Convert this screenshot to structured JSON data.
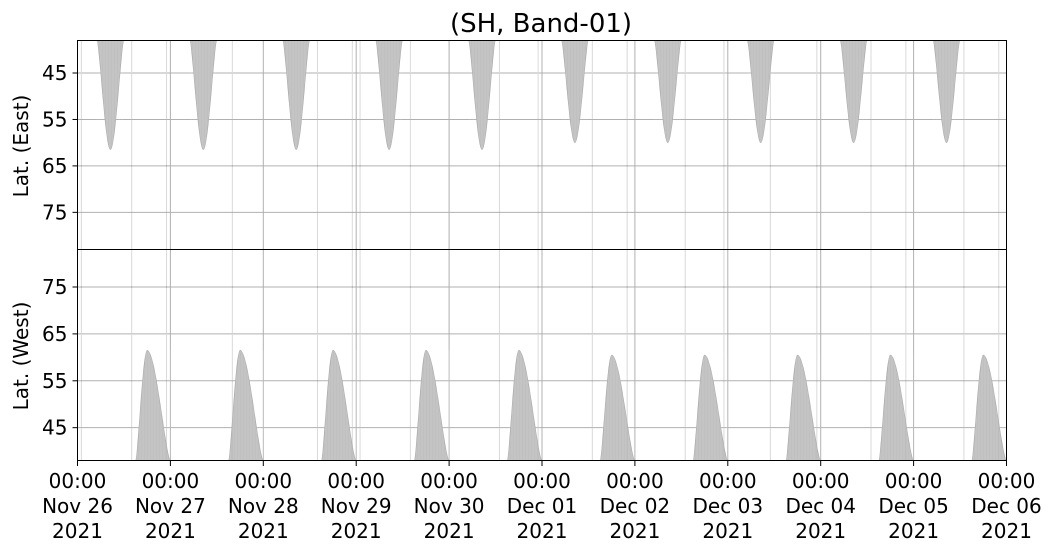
{
  "chart_data": {
    "type": "area",
    "title": "(SH, Band-01)",
    "x_ticks": [
      {
        "time": "00:00",
        "date": "Nov 26",
        "year": "2021"
      },
      {
        "time": "00:00",
        "date": "Nov 27",
        "year": "2021"
      },
      {
        "time": "00:00",
        "date": "Nov 28",
        "year": "2021"
      },
      {
        "time": "00:00",
        "date": "Nov 29",
        "year": "2021"
      },
      {
        "time": "00:00",
        "date": "Nov 30",
        "year": "2021"
      },
      {
        "time": "00:00",
        "date": "Dec 01",
        "year": "2021"
      },
      {
        "time": "00:00",
        "date": "Dec 02",
        "year": "2021"
      },
      {
        "time": "00:00",
        "date": "Dec 03",
        "year": "2021"
      },
      {
        "time": "00:00",
        "date": "Dec 04",
        "year": "2021"
      },
      {
        "time": "00:00",
        "date": "Dec 05",
        "year": "2021"
      },
      {
        "time": "00:00",
        "date": "Dec 06",
        "year": "2021"
      }
    ],
    "xlim": [
      "2021-11-26 00:00",
      "2021-12-06 00:00"
    ],
    "grid": true,
    "panels": [
      {
        "name": "east",
        "ylabel": "Lat. (East)",
        "ylim": [
          38,
          83
        ],
        "y_inverted": true,
        "y_ticks": [
          45,
          55,
          65,
          75
        ],
        "series": [
          {
            "x_start": "2021-11-26 05:00",
            "x_peak": "2021-11-26 08:30",
            "x_end": "2021-11-26 12:00",
            "lat_base": 38,
            "lat_max": 61.5
          },
          {
            "x_start": "2021-11-27 05:00",
            "x_peak": "2021-11-27 08:30",
            "x_end": "2021-11-27 12:00",
            "lat_base": 38,
            "lat_max": 61.5
          },
          {
            "x_start": "2021-11-28 05:00",
            "x_peak": "2021-11-28 08:30",
            "x_end": "2021-11-28 12:00",
            "lat_base": 38,
            "lat_max": 61.5
          },
          {
            "x_start": "2021-11-29 05:00",
            "x_peak": "2021-11-29 08:30",
            "x_end": "2021-11-29 12:00",
            "lat_base": 38,
            "lat_max": 61.5
          },
          {
            "x_start": "2021-11-30 05:00",
            "x_peak": "2021-11-30 08:30",
            "x_end": "2021-11-30 12:00",
            "lat_base": 38,
            "lat_max": 61.5
          },
          {
            "x_start": "2021-12-01 05:00",
            "x_peak": "2021-12-01 08:30",
            "x_end": "2021-12-01 12:00",
            "lat_base": 38,
            "lat_max": 60.0
          },
          {
            "x_start": "2021-12-02 05:00",
            "x_peak": "2021-12-02 08:30",
            "x_end": "2021-12-02 12:00",
            "lat_base": 38,
            "lat_max": 60.0
          },
          {
            "x_start": "2021-12-03 05:00",
            "x_peak": "2021-12-03 08:30",
            "x_end": "2021-12-03 12:00",
            "lat_base": 38,
            "lat_max": 60.0
          },
          {
            "x_start": "2021-12-04 05:00",
            "x_peak": "2021-12-04 08:30",
            "x_end": "2021-12-04 12:00",
            "lat_base": 38,
            "lat_max": 60.0
          },
          {
            "x_start": "2021-12-05 05:00",
            "x_peak": "2021-12-05 08:30",
            "x_end": "2021-12-05 12:00",
            "lat_base": 38,
            "lat_max": 60.0
          }
        ]
      },
      {
        "name": "west",
        "ylabel": "Lat. (West)",
        "ylim": [
          38,
          83
        ],
        "y_inverted": false,
        "y_ticks": [
          45,
          55,
          65,
          75
        ],
        "series": [
          {
            "x_start": "2021-11-26 15:00",
            "x_peak": "2021-11-26 18:00",
            "x_end": "2021-11-26 24:00",
            "lat_base": 38,
            "lat_max": 61.5
          },
          {
            "x_start": "2021-11-27 15:00",
            "x_peak": "2021-11-27 18:00",
            "x_end": "2021-11-27 24:00",
            "lat_base": 38,
            "lat_max": 61.5
          },
          {
            "x_start": "2021-11-28 15:00",
            "x_peak": "2021-11-28 18:00",
            "x_end": "2021-11-28 24:00",
            "lat_base": 38,
            "lat_max": 61.5
          },
          {
            "x_start": "2021-11-29 15:00",
            "x_peak": "2021-11-29 18:00",
            "x_end": "2021-11-29 24:00",
            "lat_base": 38,
            "lat_max": 61.5
          },
          {
            "x_start": "2021-11-30 15:00",
            "x_peak": "2021-11-30 18:00",
            "x_end": "2021-11-30 24:00",
            "lat_base": 38,
            "lat_max": 61.5
          },
          {
            "x_start": "2021-12-01 15:00",
            "x_peak": "2021-12-01 18:00",
            "x_end": "2021-12-01 24:00",
            "lat_base": 38,
            "lat_max": 60.5
          },
          {
            "x_start": "2021-12-02 15:00",
            "x_peak": "2021-12-02 18:00",
            "x_end": "2021-12-02 24:00",
            "lat_base": 38,
            "lat_max": 60.5
          },
          {
            "x_start": "2021-12-03 15:00",
            "x_peak": "2021-12-03 18:00",
            "x_end": "2021-12-03 24:00",
            "lat_base": 38,
            "lat_max": 60.5
          },
          {
            "x_start": "2021-12-04 15:00",
            "x_peak": "2021-12-04 18:00",
            "x_end": "2021-12-04 24:00",
            "lat_base": 38,
            "lat_max": 60.5
          },
          {
            "x_start": "2021-12-05 15:00",
            "x_peak": "2021-12-05 18:00",
            "x_end": "2021-12-05 24:00",
            "lat_base": 38,
            "lat_max": 60.5
          }
        ]
      }
    ],
    "vertical_markers": [
      "2021-11-26 01:00",
      "2021-11-26 14:00",
      "2021-11-26 23:00",
      "2021-11-27 16:00",
      "2021-11-28 14:00",
      "2021-11-28 23:00",
      "2021-11-29 01:00",
      "2021-11-29 14:00",
      "2021-11-30 13:00",
      "2021-11-30 23:00",
      "2021-12-01 13:00",
      "2021-12-01 22:00",
      "2021-12-02 13:00",
      "2021-12-02 23:00",
      "2021-12-03 11:00",
      "2021-12-03 23:00",
      "2021-12-04 13:00",
      "2021-12-04 22:00",
      "2021-12-05 13:00",
      "2021-12-05 22:00"
    ],
    "colors": {
      "fill": "#c0c0c0",
      "grid": "#b0b0b0",
      "axis": "#000000"
    }
  }
}
